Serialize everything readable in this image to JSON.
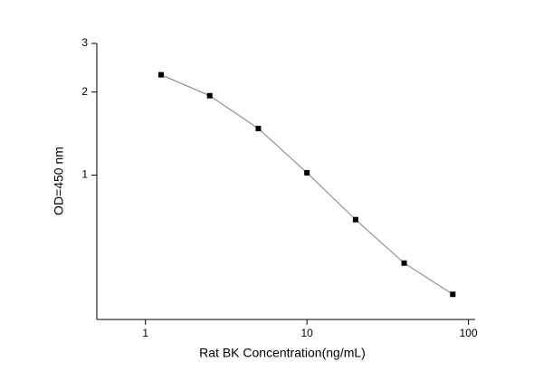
{
  "chart_data": {
    "type": "scatter",
    "x_label": "Rat  BK Concentration(ng/mL)",
    "y_label": "OD=450 nm",
    "x_log": true,
    "y_log": true,
    "xlim": [
      0.5,
      110
    ],
    "ylim": [
      0.3,
      3
    ],
    "xticks": [
      1,
      10,
      100
    ],
    "yticks": [
      1,
      2,
      3
    ],
    "fit_line": true,
    "series": [
      {
        "color": "#000000",
        "line_color": "#808080",
        "x": [
          1.25,
          2.5,
          5,
          10,
          20,
          40,
          80
        ],
        "values": [
          2.31,
          1.94,
          1.475,
          1.02,
          0.69,
          0.48,
          0.37
        ]
      }
    ]
  }
}
